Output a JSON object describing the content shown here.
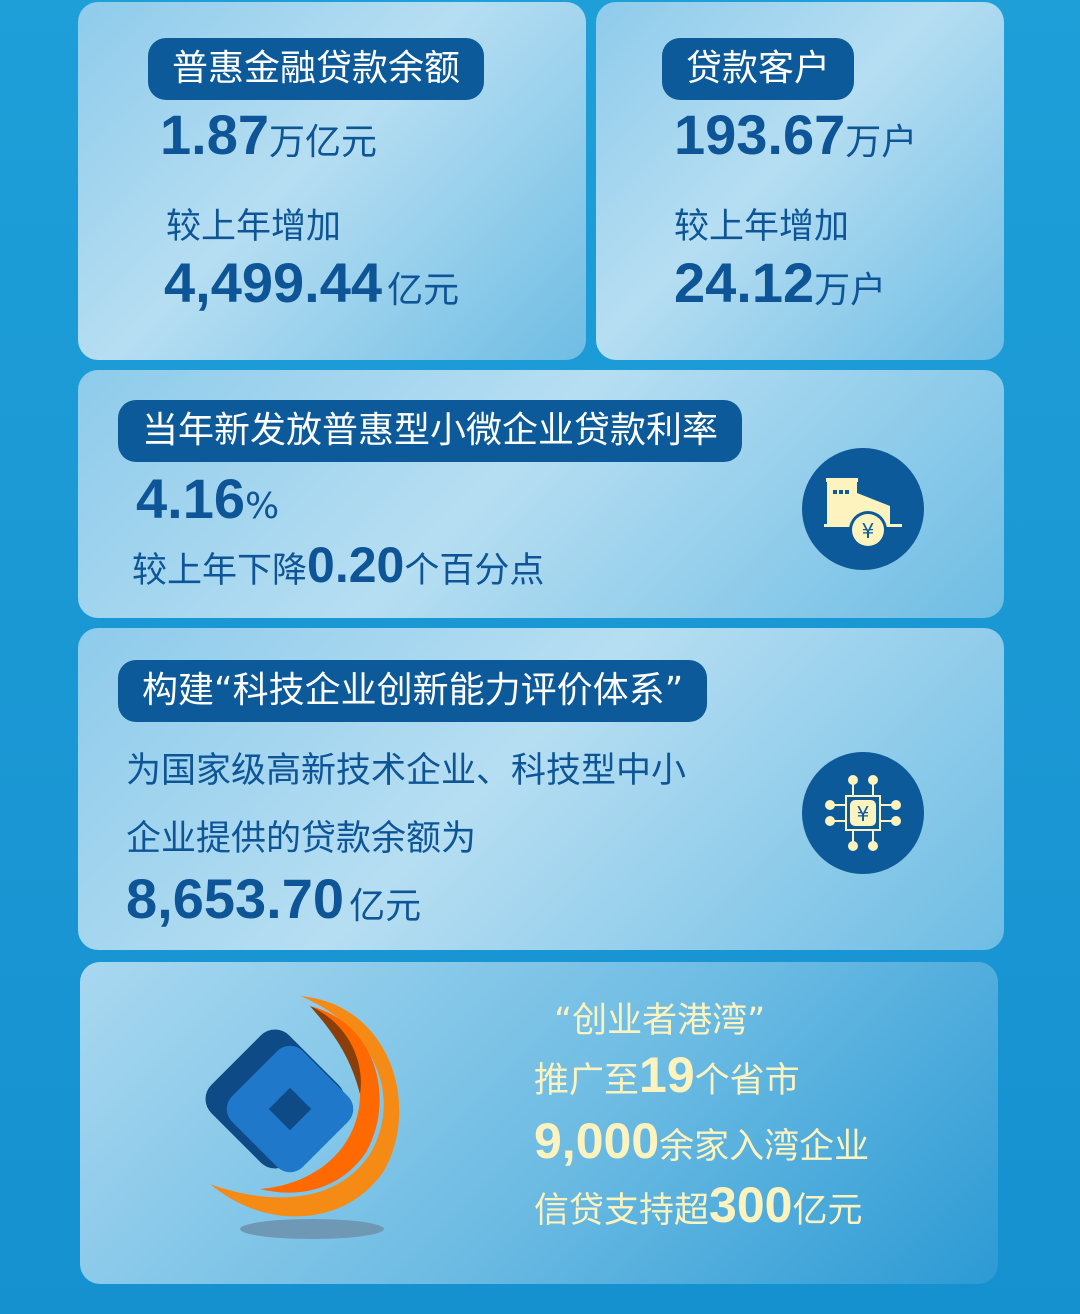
{
  "card1": {
    "title": "普惠金融贷款余额",
    "value": "1.87",
    "unit": "万亿元",
    "change_label": "较上年增加",
    "change_value": "4,499.44",
    "change_unit": "亿元"
  },
  "card2": {
    "title": "贷款客户",
    "value": "193.67",
    "unit": "万户",
    "change_label": "较上年增加",
    "change_value": "24.12",
    "change_unit": "万户"
  },
  "card3": {
    "title": "当年新发放普惠型小微企业贷款利率",
    "value": "4.16",
    "unit": "%",
    "change_prefix": "较上年下降",
    "change_value": "0.20",
    "change_unit": "个百分点",
    "icon": "factory-yuan-icon"
  },
  "card4": {
    "title": "构建“科技企业创新能力评价体系”",
    "line1": "为国家级高新技术企业、科技型中小",
    "line2": "企业提供的贷款余额为",
    "value": "8,653.70",
    "unit": "亿元",
    "icon": "chip-yuan-icon"
  },
  "card5": {
    "title": "“创业者港湾”",
    "l1_pre": "推广至",
    "l1_num": "19",
    "l1_post": "个省市",
    "l2_num": "9,000",
    "l2_post": "余家入湾企业",
    "l3_pre": "信贷支持超",
    "l3_num": "300",
    "l3_post": "亿元",
    "logo": "bank-logo"
  },
  "colors": {
    "accent": "#0d5a9a",
    "highlight": "#fdf3bf",
    "background": "#1a9ad6"
  }
}
